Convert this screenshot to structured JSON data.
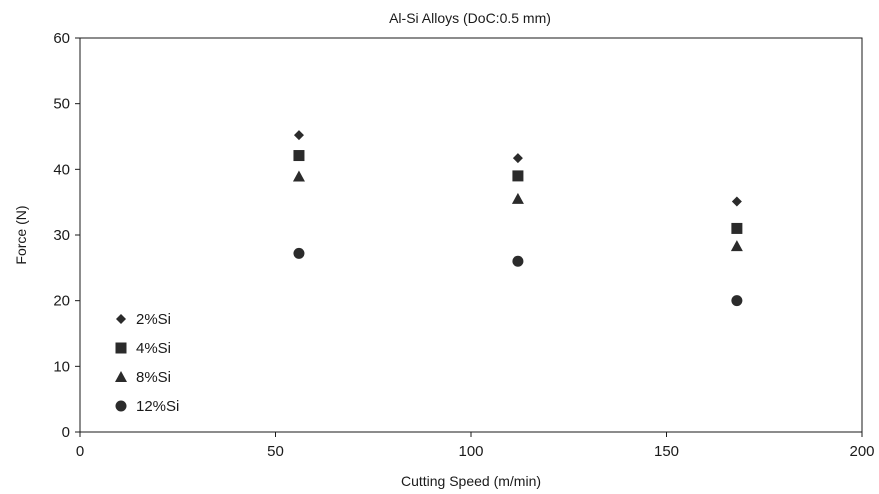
{
  "chart_data": {
    "type": "scatter",
    "title": "Al-Si Alloys (DoC:0.5 mm)",
    "xlabel": "Cutting Speed (m/min)",
    "ylabel": "Force (N)",
    "xlim": [
      0,
      200
    ],
    "ylim": [
      0,
      60
    ],
    "xticks": [
      "0",
      "50",
      "100",
      "150",
      "200"
    ],
    "yticks": [
      "0",
      "10",
      "20",
      "30",
      "40",
      "50",
      "60"
    ],
    "grid": false,
    "legend_position": "bottom-left",
    "series": [
      {
        "name": "2%Si",
        "marker": "diamond",
        "color": "#2b2b2b",
        "x": [
          56,
          112,
          168
        ],
        "y": [
          45.2,
          41.7,
          35.1
        ]
      },
      {
        "name": "4%Si",
        "marker": "square",
        "color": "#2b2b2b",
        "x": [
          56,
          112,
          168
        ],
        "y": [
          42.1,
          39.0,
          31.0
        ]
      },
      {
        "name": "8%Si",
        "marker": "triangle",
        "color": "#2b2b2b",
        "x": [
          56,
          112,
          168
        ],
        "y": [
          38.9,
          35.5,
          28.3
        ]
      },
      {
        "name": "12%Si",
        "marker": "circle",
        "color": "#2b2b2b",
        "x": [
          56,
          112,
          168
        ],
        "y": [
          27.2,
          26.0,
          20.0
        ]
      }
    ]
  }
}
